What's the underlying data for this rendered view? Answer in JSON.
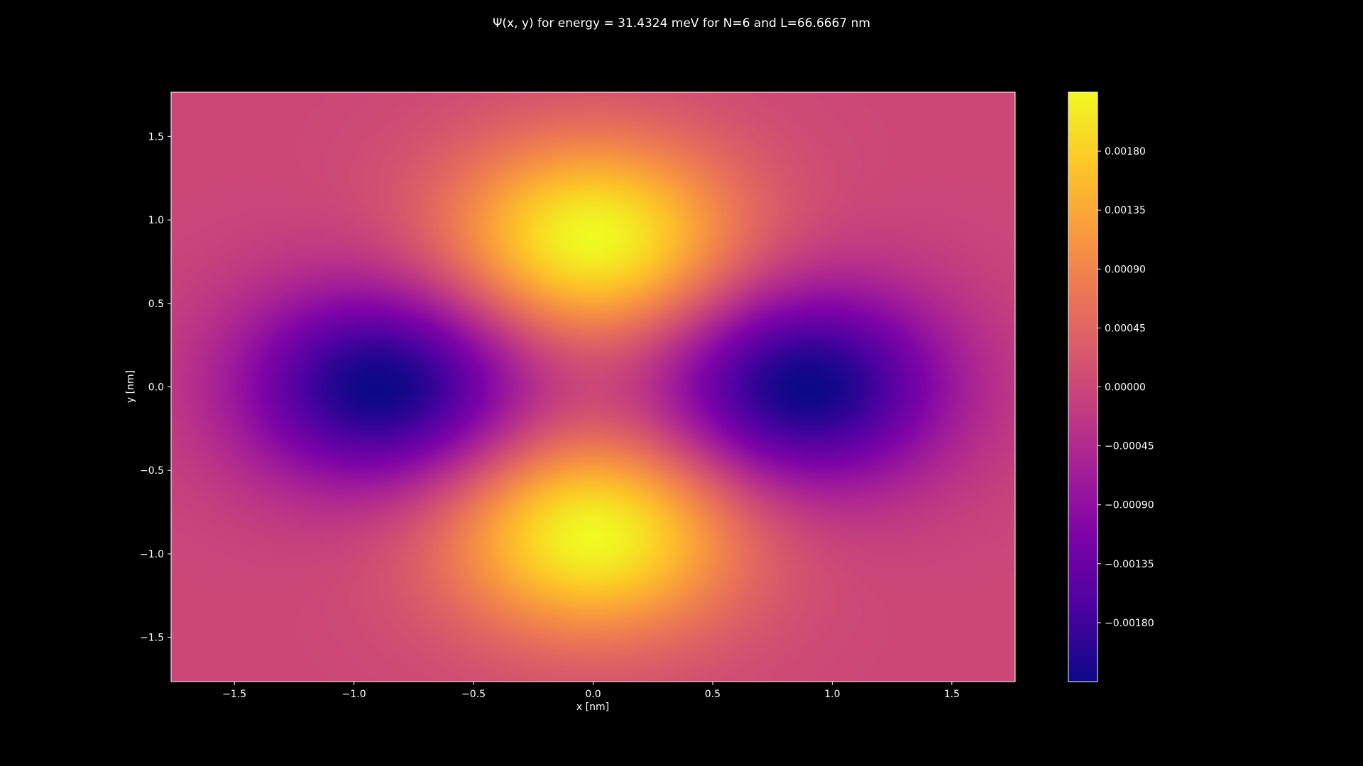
{
  "chart_data": {
    "type": "heatmap",
    "title": "Ψ(x, y) for energy = 31.4324 meV for N=6 and L=66.6667 nm",
    "xlabel": "x [nm]",
    "ylabel": "y [nm]",
    "xlim": [
      -1.7647,
      1.7647
    ],
    "ylim": [
      -1.7647,
      1.7647
    ],
    "x_ticks": [
      -1.5,
      -1.0,
      -0.5,
      0.0,
      0.5,
      1.0,
      1.5
    ],
    "x_tick_labels": [
      "−1.5",
      "−1.0",
      "−0.5",
      "0.0",
      "0.5",
      "1.0",
      "1.5"
    ],
    "y_ticks": [
      1.5,
      1.0,
      0.5,
      0.0,
      -0.5,
      -1.0,
      -1.5
    ],
    "y_tick_labels": [
      "1.5",
      "1.0",
      "0.5",
      "0.0",
      "−0.5",
      "−1.0",
      "−1.5"
    ],
    "colormap": "plasma",
    "value_range": [
      -0.00225,
      0.00225
    ],
    "colorbar_ticks": [
      0.0018,
      0.00135,
      0.0009,
      0.00045,
      0.0,
      -0.00045,
      -0.0009,
      -0.00135,
      -0.0018
    ],
    "colorbar_tick_labels": [
      "0.00180",
      "0.00135",
      "0.00090",
      "0.00045",
      "0.00000",
      "−0.00045",
      "−0.00090",
      "−0.00135",
      "−0.00180"
    ],
    "features": [
      {
        "kind": "maximum",
        "x": 0.0,
        "y": 0.88,
        "value": 0.00225
      },
      {
        "kind": "maximum",
        "x": 0.0,
        "y": -0.88,
        "value": 0.00225
      },
      {
        "kind": "minimum",
        "x": -0.88,
        "y": 0.0,
        "value": -0.00225
      },
      {
        "kind": "minimum",
        "x": 0.88,
        "y": 0.0,
        "value": -0.00225
      }
    ],
    "grid": false,
    "background": "#000000",
    "text_color": "#ffffff"
  }
}
